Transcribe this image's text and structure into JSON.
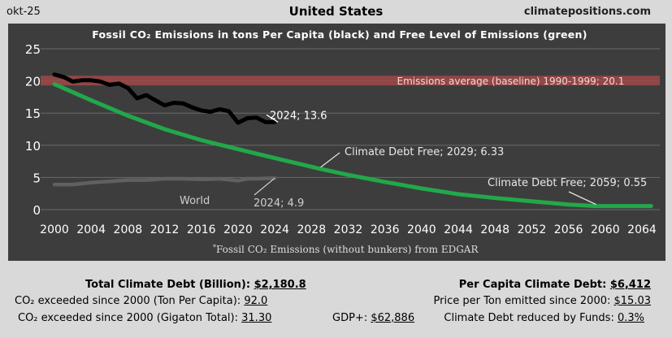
{
  "header": {
    "left": "okt-25",
    "title": "United States",
    "right": "climatepositions.com"
  },
  "chart_data": {
    "type": "line",
    "title": "Fossil CO₂ Emissions in tons Per Capita (black) and Free Level of Emissions (green)",
    "xlim": [
      2000,
      2066
    ],
    "ylim": [
      0,
      25
    ],
    "x_ticks": [
      2000,
      2004,
      2008,
      2012,
      2016,
      2020,
      2024,
      2028,
      2032,
      2036,
      2040,
      2044,
      2048,
      2052,
      2056,
      2060,
      2064
    ],
    "y_ticks": [
      0,
      5,
      10,
      15,
      20,
      25
    ],
    "grid": "horizontal",
    "baseline_band": {
      "label": "Emissions average (baseline) 1990-1999; 20.1",
      "y_low": 19.3,
      "y_high": 20.8,
      "color": "#a04848"
    },
    "series": [
      {
        "name": "Fossil CO₂ Emissions in tons Per Capita",
        "color": "#000000",
        "x": [
          2000,
          2001,
          2002,
          2003,
          2004,
          2005,
          2006,
          2007,
          2008,
          2009,
          2010,
          2011,
          2012,
          2013,
          2014,
          2015,
          2016,
          2017,
          2018,
          2019,
          2020,
          2021,
          2022,
          2023,
          2024
        ],
        "values": [
          21.0,
          20.6,
          19.9,
          20.1,
          20.1,
          19.9,
          19.4,
          19.6,
          18.9,
          17.3,
          17.8,
          17.0,
          16.2,
          16.6,
          16.5,
          15.9,
          15.4,
          15.2,
          15.6,
          15.3,
          13.5,
          14.2,
          14.3,
          13.6,
          13.6
        ]
      },
      {
        "name": "World",
        "color": "#606060",
        "x": [
          2000,
          2002,
          2004,
          2006,
          2008,
          2010,
          2012,
          2014,
          2016,
          2018,
          2020,
          2021,
          2022,
          2024
        ],
        "values": [
          3.9,
          3.9,
          4.2,
          4.4,
          4.6,
          4.6,
          4.8,
          4.8,
          4.7,
          4.8,
          4.5,
          4.8,
          4.8,
          4.9
        ]
      },
      {
        "name": "Free Level of Emissions",
        "color": "#22a84a",
        "x": [
          2000,
          2004,
          2008,
          2012,
          2016,
          2020,
          2024,
          2029,
          2032,
          2036,
          2040,
          2044,
          2048,
          2052,
          2056,
          2059,
          2065
        ],
        "values": [
          19.5,
          17.0,
          14.6,
          12.5,
          10.8,
          9.4,
          8.0,
          6.33,
          5.4,
          4.3,
          3.3,
          2.4,
          1.8,
          1.3,
          0.8,
          0.55,
          0.55
        ]
      }
    ],
    "annotations": [
      {
        "text": "2024; 13.6",
        "x": 2024,
        "y": 13.6
      },
      {
        "text": "Climate Debt Free; 2029; 6.33",
        "x": 2029,
        "y": 6.33
      },
      {
        "text": "Climate Debt Free; 2059; 0.55",
        "x": 2059,
        "y": 0.55
      },
      {
        "text": "World",
        "x": 2019,
        "y": 4.5
      },
      {
        "text": "2024; 4.9",
        "x": 2024,
        "y": 4.9
      }
    ],
    "footnote_mark": "*",
    "footnote": "Fossil CO₂ Emissions (without bunkers) from EDGAR",
    "colors": {
      "plot_bg": "#3d3d3d",
      "grid": "#6a6a6a",
      "tick_text": "#ffffff",
      "annotation_text": "#ffffff"
    }
  },
  "stats": {
    "total_debt_label": "Total Climate Debt (Billion): ",
    "total_debt_value": "$2,180.8",
    "exceeded_ton_label": "CO₂ exceeded since 2000 (Ton Per Capita): ",
    "exceeded_ton_value": "92.0",
    "exceeded_gigaton_label": "CO₂ exceeded since 2000 (Gigaton Total): ",
    "exceeded_gigaton_value": "31.30",
    "gdp_label": "GDP+: ",
    "gdp_value": "$62,886",
    "per_capita_debt_label": "Per Capita Climate Debt: ",
    "per_capita_debt_value": "$6,412",
    "price_per_ton_label": "Price per Ton emitted since 2000: ",
    "price_per_ton_value": "$15.03",
    "funds_label": "Climate Debt reduced by Funds: ",
    "funds_value": "0.3%"
  }
}
